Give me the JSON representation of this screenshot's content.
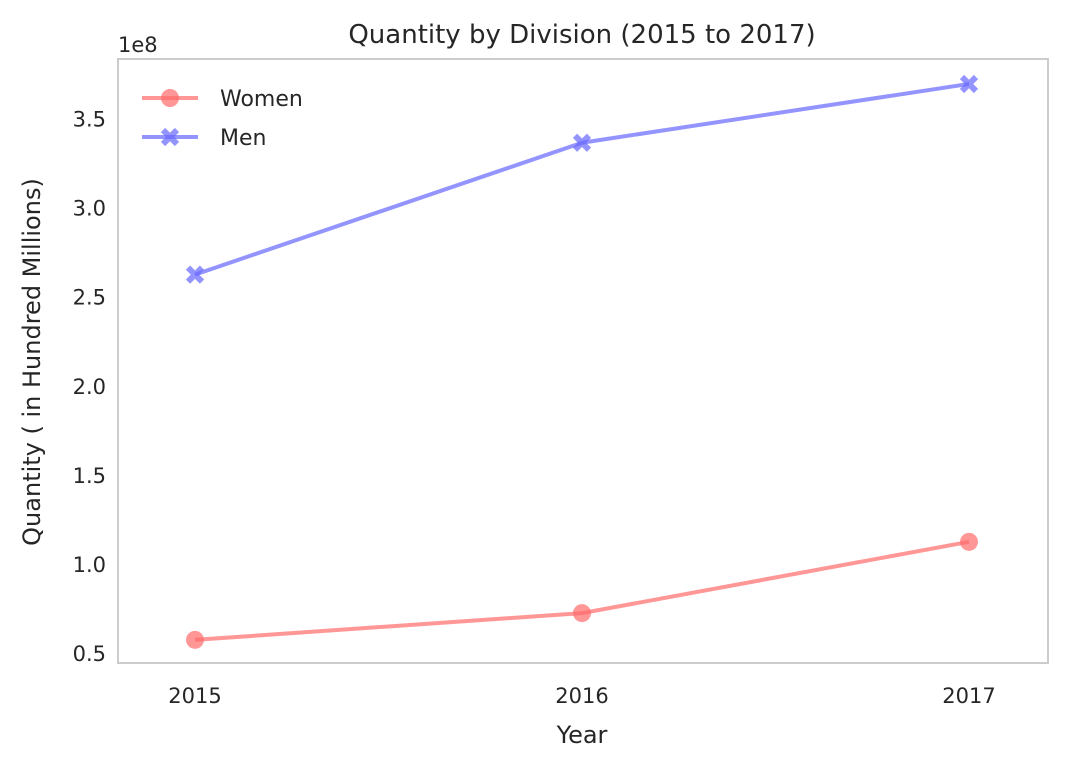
{
  "chart_data": {
    "type": "line",
    "title": "Quantity by Division (2015 to 2017)",
    "xlabel": "Year",
    "ylabel": "Quantity ( in Hundred Millions)",
    "offset_label": "1e8",
    "categories": [
      "2015",
      "2016",
      "2017"
    ],
    "yticks": [
      "0.5",
      "1.0",
      "1.5",
      "2.0",
      "2.5",
      "3.0",
      "3.5"
    ],
    "ylim": [
      0.45,
      3.84
    ],
    "ytick_values": [
      0.5,
      1.0,
      1.5,
      2.0,
      2.5,
      3.0,
      3.5
    ],
    "grid": false,
    "legend_position": "top-left",
    "series": [
      {
        "name": "Women",
        "values": [
          0.58,
          0.73,
          1.13
        ],
        "color": "#ff6b6b",
        "marker": "circle"
      },
      {
        "name": "Men",
        "values": [
          2.63,
          3.37,
          3.7
        ],
        "color": "#6666ff",
        "marker": "x"
      }
    ]
  }
}
